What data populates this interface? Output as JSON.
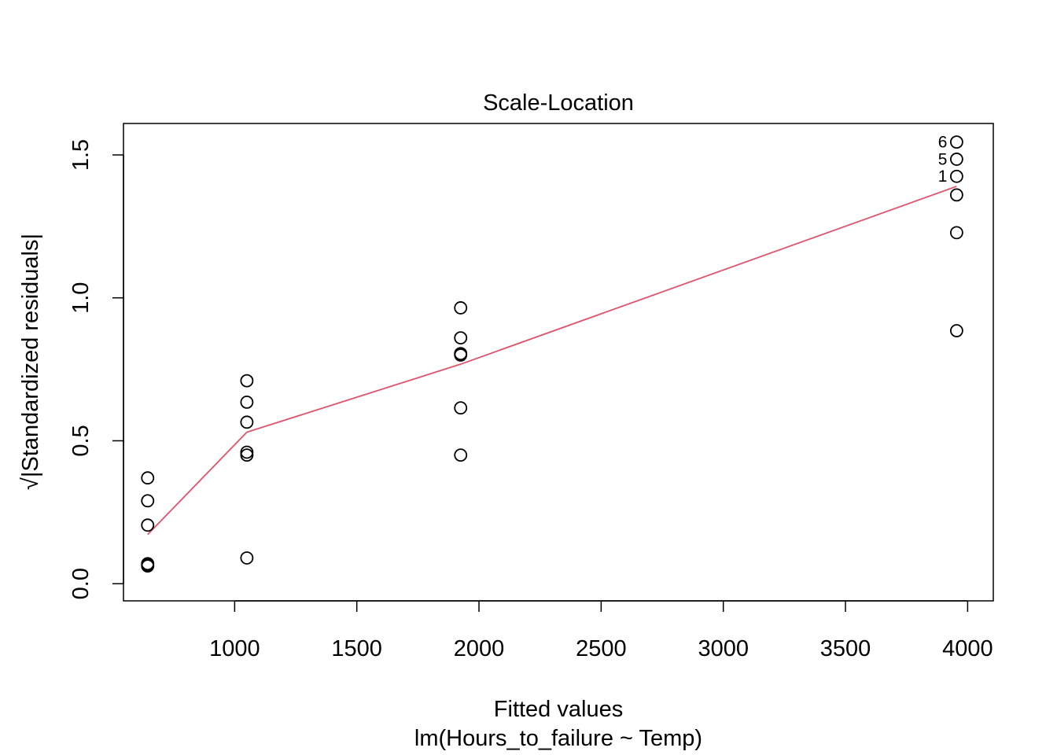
{
  "chart_data": {
    "type": "scatter",
    "title": "Scale-Location",
    "xlabel": "Fitted values",
    "xlabel_sub": "lm(Hours_to_failure ~ Temp)",
    "ylabel": "√|Standardized residuals|",
    "xlim": [
      545,
      4105
    ],
    "ylim": [
      -0.06,
      1.61
    ],
    "x_ticks": [
      1000,
      1500,
      2000,
      2500,
      3000,
      3500,
      4000
    ],
    "x_tick_labels": [
      "1000",
      "1500",
      "2000",
      "2500",
      "3000",
      "3500",
      "4000"
    ],
    "y_ticks": [
      0.0,
      0.5,
      1.0,
      1.5
    ],
    "y_tick_labels": [
      "0.0",
      "0.5",
      "1.0",
      "1.5"
    ],
    "grid": false,
    "colors": {
      "points": "#000000",
      "smooth_line": "#DF536B",
      "frame": "#000000"
    },
    "points": [
      {
        "x": 644,
        "y": 0.37
      },
      {
        "x": 644,
        "y": 0.29
      },
      {
        "x": 644,
        "y": 0.205
      },
      {
        "x": 644,
        "y": 0.07
      },
      {
        "x": 644,
        "y": 0.065
      },
      {
        "x": 644,
        "y": 0.062
      },
      {
        "x": 1050,
        "y": 0.71
      },
      {
        "x": 1050,
        "y": 0.635
      },
      {
        "x": 1050,
        "y": 0.565
      },
      {
        "x": 1050,
        "y": 0.46
      },
      {
        "x": 1050,
        "y": 0.45
      },
      {
        "x": 1050,
        "y": 0.09
      },
      {
        "x": 1925,
        "y": 0.965
      },
      {
        "x": 1925,
        "y": 0.86
      },
      {
        "x": 1925,
        "y": 0.805
      },
      {
        "x": 1925,
        "y": 0.8
      },
      {
        "x": 1925,
        "y": 0.615
      },
      {
        "x": 1925,
        "y": 0.45
      },
      {
        "x": 3955,
        "y": 1.545,
        "label": "6"
      },
      {
        "x": 3955,
        "y": 1.485,
        "label": "5"
      },
      {
        "x": 3955,
        "y": 1.425,
        "label": "1"
      },
      {
        "x": 3955,
        "y": 1.36
      },
      {
        "x": 3955,
        "y": 1.228
      },
      {
        "x": 3955,
        "y": 0.885
      }
    ],
    "smooth_line": {
      "name": "",
      "x": [
        644,
        1050,
        1925,
        3955
      ],
      "y": [
        0.172,
        0.53,
        0.768,
        1.39
      ]
    }
  }
}
